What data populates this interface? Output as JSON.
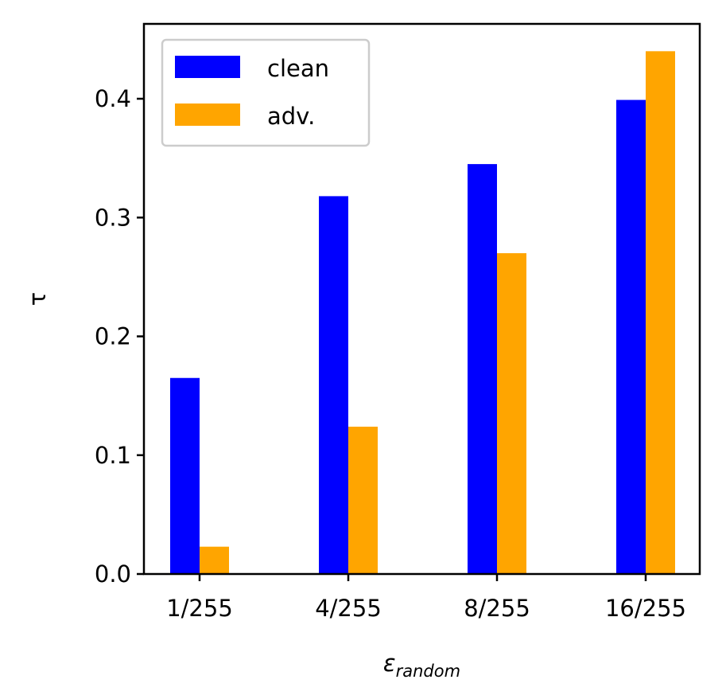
{
  "chart_data": {
    "type": "bar",
    "categories": [
      "1/255",
      "4/255",
      "8/255",
      "16/255"
    ],
    "series": [
      {
        "name": "clean",
        "values": [
          0.165,
          0.318,
          0.345,
          0.399
        ],
        "color": "#0000ff"
      },
      {
        "name": "adv.",
        "values": [
          0.023,
          0.124,
          0.27,
          0.44
        ],
        "color": "#ffa500"
      }
    ],
    "title": "",
    "xlabel": "ε",
    "xlabel_sub": "random",
    "ylabel": "τ",
    "ylim": [
      0,
      0.463
    ],
    "yticks": [
      0.0,
      0.1,
      0.2,
      0.3,
      0.4
    ],
    "ytick_labels": [
      "0.0",
      "0.1",
      "0.2",
      "0.3",
      "0.4"
    ],
    "legend_position": "top-left",
    "grid": false
  }
}
